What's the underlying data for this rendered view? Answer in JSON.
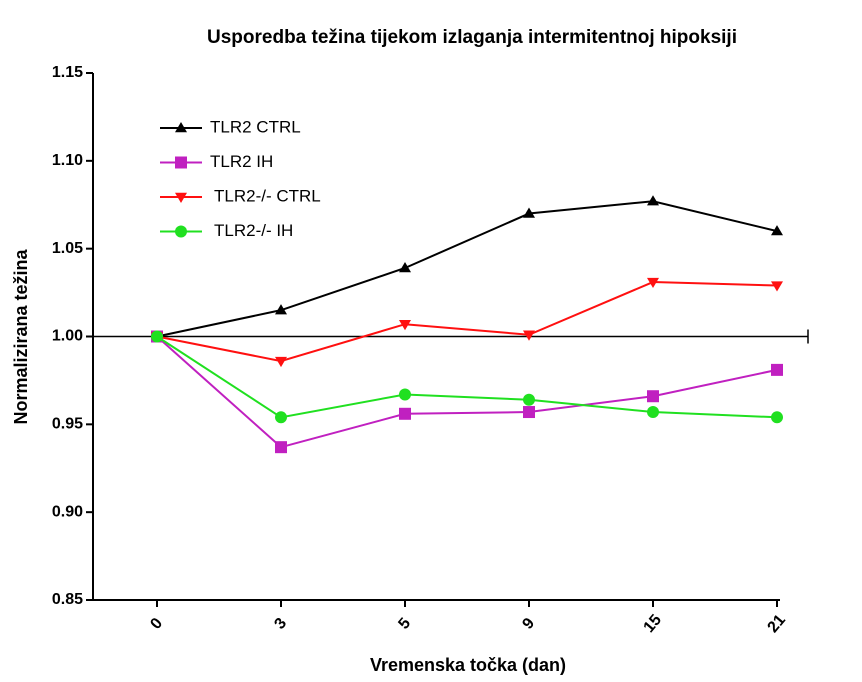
{
  "chart_data": {
    "type": "line",
    "title": "Usporedba težina tijekom izlaganja intermitentnoj hipoksiji",
    "x_label": "Vremenska točka (dan)",
    "y_label": "Normalizirana težina",
    "categories": [
      "0",
      "3",
      "5",
      "9",
      "15",
      "21"
    ],
    "ylim": [
      0.85,
      1.15
    ],
    "yticks": [
      {
        "value": 0.85,
        "label": "0.85"
      },
      {
        "value": 0.9,
        "label": "0.90"
      },
      {
        "value": 0.95,
        "label": "0.95"
      },
      {
        "value": 1.0,
        "label": "1.00"
      },
      {
        "value": 1.05,
        "label": "1.05"
      },
      {
        "value": 1.1,
        "label": "1.10"
      },
      {
        "value": 1.15,
        "label": "1.15"
      }
    ],
    "reference_line": 1.0,
    "series": [
      {
        "name": "TLR2 CTRL",
        "color": "#000000",
        "marker": "triangle-up",
        "values": [
          1.0,
          1.015,
          1.039,
          1.07,
          1.077,
          1.06
        ]
      },
      {
        "name": "TLR2 IH",
        "color": "#c020c0",
        "marker": "square",
        "values": [
          1.0,
          0.937,
          0.956,
          0.957,
          0.966,
          0.981
        ]
      },
      {
        "name": "TLR2-/- CTRL",
        "color": "#ff1010",
        "marker": "triangle-down",
        "values": [
          1.0,
          0.986,
          1.007,
          1.001,
          1.031,
          1.029
        ]
      },
      {
        "name": "TLR2-/- IH",
        "color": "#20e020",
        "marker": "circle",
        "values": [
          1.0,
          0.954,
          0.967,
          0.964,
          0.957,
          0.954
        ]
      }
    ]
  }
}
